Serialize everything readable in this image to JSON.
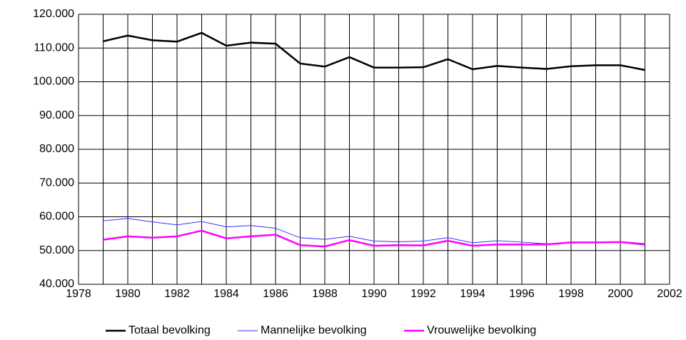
{
  "chart_data": {
    "type": "line",
    "x": [
      1979,
      1980,
      1981,
      1982,
      1983,
      1984,
      1985,
      1986,
      1987,
      1988,
      1989,
      1990,
      1991,
      1992,
      1993,
      1994,
      1995,
      1996,
      1997,
      1998,
      1999,
      2000,
      2001
    ],
    "series": [
      {
        "name": "Totaal bevolking",
        "color": "#000000",
        "values": [
          112000,
          113700,
          112300,
          111900,
          114500,
          110700,
          111600,
          111300,
          105400,
          104500,
          107300,
          104200,
          104200,
          104300,
          106700,
          103700,
          104700,
          104200,
          103800,
          104600,
          104900,
          104900,
          103500
        ]
      },
      {
        "name": "Mannelijke bevolking",
        "color": "#3333ff",
        "values": [
          58800,
          59500,
          58500,
          57600,
          58600,
          57000,
          57400,
          56600,
          53800,
          53300,
          54200,
          52800,
          52600,
          52800,
          53800,
          52300,
          52900,
          52500,
          52000,
          52200,
          52500,
          52400,
          51600
        ]
      },
      {
        "name": "Vrouwelijke bevolking",
        "color": "#ff00ff",
        "values": [
          53200,
          54200,
          53800,
          54200,
          55900,
          53600,
          54200,
          54700,
          51600,
          51200,
          53100,
          51400,
          51600,
          51500,
          52900,
          51400,
          51800,
          51800,
          51800,
          52400,
          52400,
          52500,
          51900
        ]
      }
    ],
    "xlim": [
      1978,
      2002
    ],
    "xticks": [
      1978,
      1980,
      1982,
      1984,
      1986,
      1988,
      1990,
      1992,
      1994,
      1996,
      1998,
      2000,
      2002
    ],
    "ylim": [
      40000,
      120000
    ],
    "yticks": [
      {
        "value": 40000,
        "label": "40.000"
      },
      {
        "value": 50000,
        "label": "50.000"
      },
      {
        "value": 60000,
        "label": "60.000"
      },
      {
        "value": 70000,
        "label": "70.000"
      },
      {
        "value": 80000,
        "label": "80.000"
      },
      {
        "value": 90000,
        "label": "90.000"
      },
      {
        "value": 100000,
        "label": "100.000"
      },
      {
        "value": 110000,
        "label": "110.000"
      },
      {
        "value": 120000,
        "label": "120.000"
      }
    ],
    "grid": true,
    "legend": "bottom"
  }
}
